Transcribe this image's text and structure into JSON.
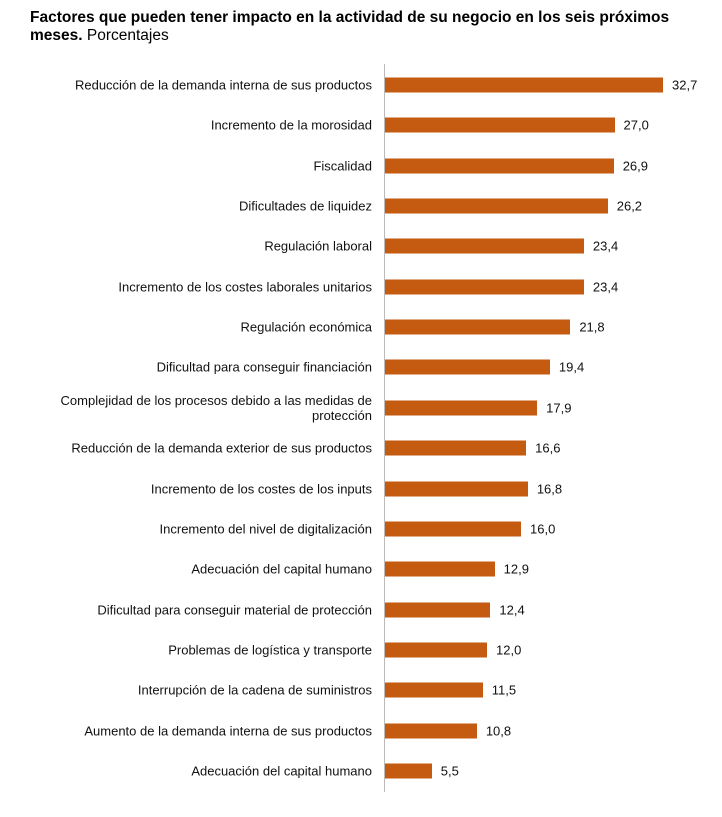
{
  "chart_data": {
    "type": "bar",
    "orientation": "horizontal",
    "title": "Factores que pueden tener impacto en la actividad de su negocio en los seis próximos meses.",
    "subtitle": "Porcentajes",
    "color": "#c55a11",
    "categories": [
      "Reducción de la demanda interna de sus productos",
      "Incremento de la morosidad",
      "Fiscalidad",
      "Dificultades de liquidez",
      "Regulación laboral",
      "Incremento de los costes laborales unitarios",
      "Regulación económica",
      "Dificultad para conseguir financiación",
      "Complejidad de los procesos debido a las medidas de protección",
      "Reducción de la demanda exterior de sus productos",
      "Incremento de los costes de los inputs",
      "Incremento del nivel de digitalización",
      "Adecuación del capital humano",
      "Dificultad para conseguir material de protección",
      "Problemas de logística y transporte",
      "Interrupción de la cadena de suministros",
      "Aumento de la demanda interna de sus productos",
      "Adecuación del capital humano"
    ],
    "values": [
      32.7,
      27.0,
      26.9,
      26.2,
      23.4,
      23.4,
      21.8,
      19.4,
      17.9,
      16.6,
      16.8,
      16.0,
      12.9,
      12.4,
      12.0,
      11.5,
      10.8,
      5.5
    ],
    "value_labels": [
      "32,7",
      "27,0",
      "26,9",
      "26,2",
      "23,4",
      "23,4",
      "21,8",
      "19,4",
      "17,9",
      "16,6",
      "16,8",
      "16,0",
      "12,9",
      "12,4",
      "12,0",
      "11,5",
      "10,8",
      "5,5"
    ]
  }
}
